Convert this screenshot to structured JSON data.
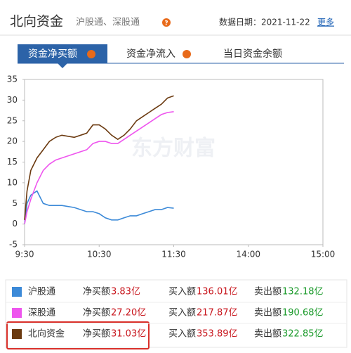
{
  "header": {
    "title": "北向资金",
    "subtitle": "沪股通、深股通",
    "date": "数据日期：2021-11-22",
    "more": "更多"
  },
  "tabs": [
    "资金净买额",
    "资金净流入",
    "当日资金余额"
  ],
  "chart_data": {
    "type": "line",
    "watermark": "东方财富",
    "x": [
      0,
      2,
      5,
      10,
      15,
      20,
      25,
      30,
      40,
      50,
      55,
      60,
      65,
      70,
      75,
      80,
      85,
      90,
      95,
      100,
      105,
      110,
      115,
      120
    ],
    "xlim": [
      0,
      240
    ],
    "xticks": [
      {
        "value": 0,
        "label": "9:30"
      },
      {
        "value": 60,
        "label": "10:30"
      },
      {
        "value": 120,
        "label": "11:30"
      },
      {
        "value": 180,
        "label": "14:00"
      },
      {
        "value": 240,
        "label": "15:00"
      }
    ],
    "ylim": [
      -5,
      35
    ],
    "yticks": [
      -5,
      0,
      5,
      10,
      15,
      20,
      25,
      30,
      35
    ],
    "series": [
      {
        "name": "沪股通",
        "color": "#3c8ad8",
        "values": [
          0,
          5,
          7,
          8,
          5,
          4.5,
          4.5,
          4.5,
          4,
          3,
          3,
          2.5,
          1.5,
          1,
          1,
          1.5,
          2,
          2,
          2.5,
          3,
          3.5,
          3.5,
          4,
          3.83
        ]
      },
      {
        "name": "深股通",
        "color": "#ee55ee",
        "values": [
          0,
          3,
          6,
          10,
          13,
          14.5,
          15.5,
          16,
          17,
          18,
          19.5,
          20,
          20,
          19.5,
          19.5,
          20.5,
          21.5,
          22.5,
          23.5,
          24.5,
          25.5,
          26.5,
          27,
          27.2
        ]
      },
      {
        "name": "北向资金",
        "color": "#6b3a10",
        "values": [
          1,
          8,
          13,
          16,
          18,
          20,
          21,
          21.5,
          21,
          22,
          24,
          24,
          23,
          21.5,
          20.5,
          21.5,
          23,
          25,
          26,
          27,
          28,
          29,
          30.5,
          31.03
        ]
      }
    ]
  },
  "table": {
    "rows": [
      [
        "沪股通",
        "净买额",
        "3.83亿",
        "买入额",
        "136.01亿",
        "卖出额",
        "132.18亿"
      ],
      [
        "深股通",
        "净买额",
        "27.20亿",
        "买入额",
        "217.87亿",
        "卖出额",
        "190.68亿"
      ],
      [
        "北向资金",
        "净买额",
        "31.03亿",
        "买入额",
        "353.89亿",
        "卖出额",
        "322.85亿"
      ]
    ]
  }
}
